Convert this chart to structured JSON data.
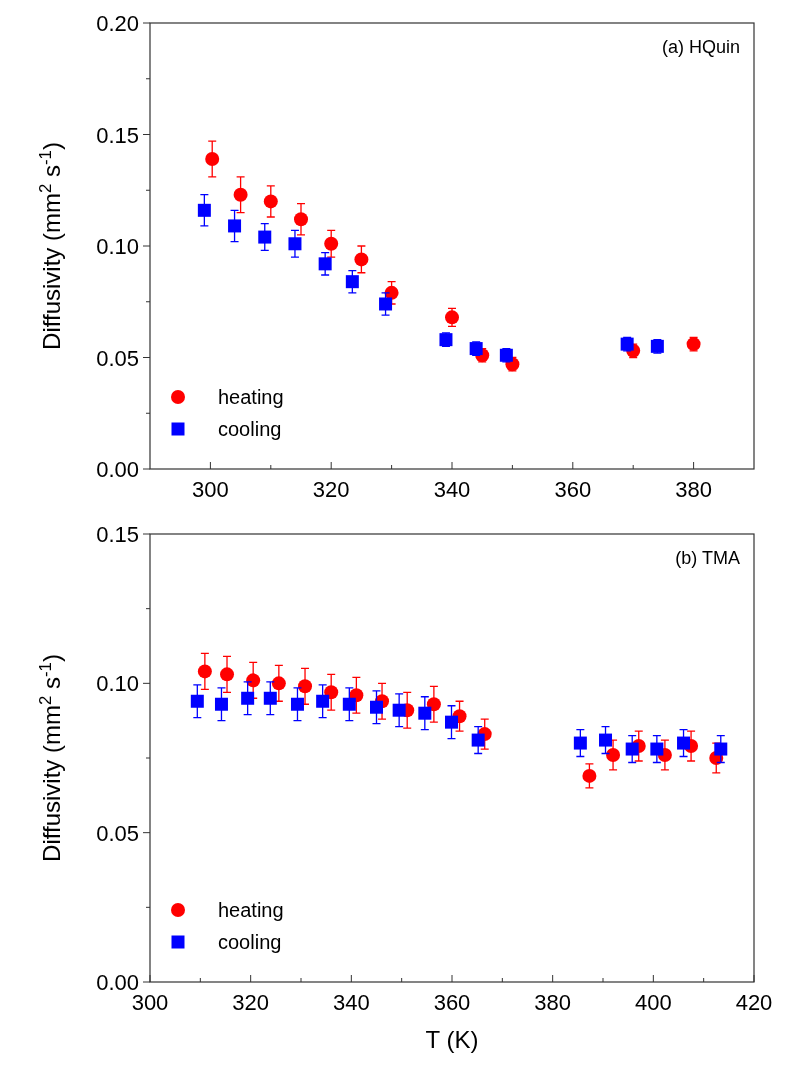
{
  "chart_data": [
    {
      "type": "scatter",
      "ylabel": "Diffusivity (mm$^{2}$ s$^{-1}$)",
      "annotations": [
        "(a) HQuin"
      ],
      "legend": "bottom left",
      "grid": false,
      "xlim": [
        290,
        390
      ],
      "xticks": [
        300,
        {
          "value": 310,
          "label": null
        },
        320,
        {
          "value": 330,
          "label": null
        },
        340,
        {
          "value": 350,
          "label": null
        },
        360,
        {
          "value": 370,
          "label": null
        },
        380
      ],
      "ylim": [
        0,
        0.2
      ],
      "yticks": [
        {
          "value": 0,
          "label": "0.00"
        },
        {
          "value": 0.025,
          "label": null
        },
        {
          "value": 0.05,
          "label": "0.05"
        },
        {
          "value": 0.075,
          "label": null
        },
        {
          "value": 0.1,
          "label": "0.10"
        },
        {
          "value": 0.125,
          "label": null
        },
        {
          "value": 0.15,
          "label": "0.15"
        },
        {
          "value": 0.175,
          "label": null
        },
        {
          "value": 0.2,
          "label": "0.20"
        }
      ],
      "series": [
        {
          "name": "heating",
          "color": "#ff0000",
          "marker": "circle",
          "x": [
            300.3,
            305,
            310,
            315,
            320,
            325,
            330,
            340,
            345,
            350,
            370,
            380
          ],
          "values": [
            0.139,
            0.123,
            0.12,
            0.112,
            0.101,
            0.094,
            0.079,
            0.068,
            0.051,
            0.047,
            0.053,
            0.056
          ],
          "errors": [
            0.008,
            0.008,
            0.007,
            0.007,
            0.006,
            0.006,
            0.005,
            0.004,
            0.003,
            0.003,
            0.003,
            0.003
          ]
        },
        {
          "name": "cooling",
          "color": "#0000ff",
          "marker": "square",
          "x": [
            299,
            304,
            309,
            314,
            319,
            323.5,
            329,
            339,
            344,
            349,
            369,
            374
          ],
          "values": [
            0.116,
            0.109,
            0.104,
            0.101,
            0.092,
            0.084,
            0.074,
            0.058,
            0.054,
            0.051,
            0.056,
            0.055
          ],
          "errors": [
            0.007,
            0.007,
            0.006,
            0.006,
            0.005,
            0.005,
            0.005,
            0.003,
            0.003,
            0.003,
            0.003,
            0.003
          ]
        }
      ]
    },
    {
      "type": "scatter",
      "xlabel": "T (K)",
      "ylabel": "Diffusivity (mm$^{2}$ s$^{-1}$)",
      "annotations": [
        "(b) TMA"
      ],
      "legend": "bottom left",
      "grid": false,
      "xlim": [
        300,
        420
      ],
      "xticks": [
        300,
        {
          "value": 310,
          "label": null
        },
        320,
        {
          "value": 330,
          "label": null
        },
        340,
        {
          "value": 350,
          "label": null
        },
        360,
        {
          "value": 370,
          "label": null
        },
        380,
        {
          "value": 390,
          "label": null
        },
        400,
        {
          "value": 410,
          "label": null
        },
        420
      ],
      "ylim": [
        0,
        0.15
      ],
      "yticks": [
        {
          "value": 0,
          "label": "0.00"
        },
        {
          "value": 0.025,
          "label": null
        },
        {
          "value": 0.05,
          "label": "0.05"
        },
        {
          "value": 0.075,
          "label": null
        },
        {
          "value": 0.1,
          "label": "0.10"
        },
        {
          "value": 0.125,
          "label": null
        },
        {
          "value": 0.15,
          "label": "0.15"
        }
      ],
      "series": [
        {
          "name": "heating",
          "color": "#ff0000",
          "marker": "circle",
          "x": [
            310.9,
            315.3,
            320.5,
            325.6,
            330.8,
            336,
            341,
            346.1,
            351.1,
            356.4,
            361.5,
            366.5,
            387.3,
            392,
            397.1,
            402.3,
            407.5,
            412.5
          ],
          "values": [
            0.104,
            0.103,
            0.101,
            0.1,
            0.099,
            0.097,
            0.096,
            0.094,
            0.091,
            0.093,
            0.089,
            0.083,
            0.069,
            0.076,
            0.079,
            0.076,
            0.079,
            0.075
          ],
          "errors": [
            0.006,
            0.006,
            0.006,
            0.006,
            0.006,
            0.006,
            0.006,
            0.006,
            0.006,
            0.006,
            0.005,
            0.005,
            0.004,
            0.005,
            0.005,
            0.005,
            0.005,
            0.005
          ]
        },
        {
          "name": "cooling",
          "color": "#0000ff",
          "marker": "square",
          "x": [
            309.4,
            314.2,
            319.4,
            323.9,
            329.3,
            334.3,
            339.6,
            345,
            349.5,
            354.6,
            359.9,
            365.2,
            385.5,
            390.5,
            395.8,
            400.7,
            406,
            413.4
          ],
          "values": [
            0.094,
            0.093,
            0.095,
            0.095,
            0.093,
            0.094,
            0.093,
            0.092,
            0.091,
            0.09,
            0.087,
            0.081,
            0.08,
            0.081,
            0.078,
            0.078,
            0.08,
            0.078
          ],
          "errors": [
            0.0055,
            0.0055,
            0.0055,
            0.0055,
            0.0055,
            0.0055,
            0.0055,
            0.0055,
            0.0055,
            0.0055,
            0.0055,
            0.0045,
            0.0045,
            0.0045,
            0.0045,
            0.0045,
            0.0045,
            0.0045
          ]
        }
      ]
    }
  ]
}
